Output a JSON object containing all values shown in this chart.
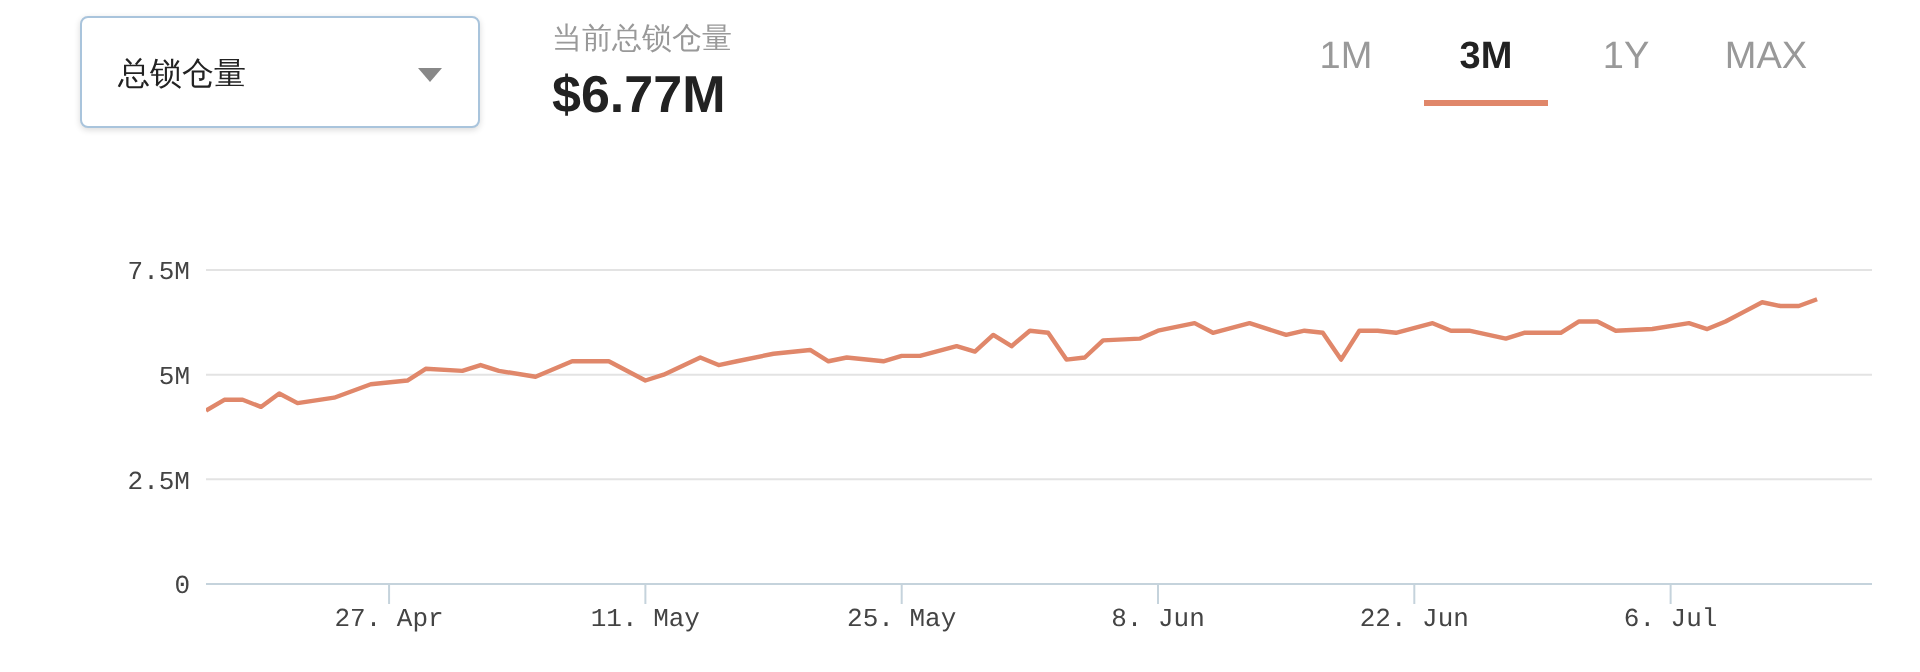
{
  "chart_data": {
    "type": "line",
    "annotations": [
      "总锁仓量",
      "当前总锁仓量",
      "$6.77M",
      "1M",
      "3M",
      "1Y",
      "MAX"
    ],
    "x": [
      "--04-17",
      "--04-18",
      "--04-19",
      "--04-20",
      "--04-21",
      "--04-22",
      "--04-24",
      "--04-26",
      "--04-28",
      "--04-29",
      "--05-01",
      "--05-02",
      "--05-03",
      "--05-05",
      "--05-07",
      "--05-09",
      "--05-11",
      "--05-12",
      "--05-14",
      "--05-15",
      "--05-16",
      "--05-18",
      "--05-20",
      "--05-21",
      "--05-22",
      "--05-24",
      "--05-25",
      "--05-26",
      "--05-28",
      "--05-29",
      "--05-30",
      "--05-31",
      "--06-01",
      "--06-02",
      "--06-03",
      "--06-04",
      "--06-05",
      "--06-07",
      "--06-08",
      "--06-10",
      "--06-11",
      "--06-13",
      "--06-15",
      "--06-16",
      "--06-17",
      "--06-18",
      "--06-19",
      "--06-20",
      "--06-21",
      "--06-23",
      "--06-24",
      "--06-25",
      "--06-27",
      "--06-28",
      "--06-30",
      "--07-01",
      "--07-02",
      "--07-03",
      "--07-05",
      "--07-07",
      "--07-08",
      "--07-09",
      "--07-10",
      "--07-11",
      "--07-12",
      "--07-13",
      "--07-14"
    ],
    "series": [
      {
        "color": "#e0876a",
        "values": [
          4.14,
          4.4,
          4.4,
          4.23,
          4.55,
          4.32,
          4.45,
          4.77,
          4.86,
          5.14,
          5.09,
          5.23,
          5.09,
          4.95,
          5.32,
          5.32,
          4.86,
          5.0,
          5.41,
          5.23,
          5.32,
          5.5,
          5.59,
          5.32,
          5.41,
          5.32,
          5.45,
          5.45,
          5.68,
          5.55,
          5.95,
          5.68,
          6.05,
          6.0,
          5.36,
          5.41,
          5.82,
          5.86,
          6.05,
          6.23,
          6.0,
          6.23,
          5.95,
          6.05,
          6.0,
          5.36,
          6.05,
          6.05,
          6.0,
          6.23,
          6.05,
          6.05,
          5.86,
          6.0,
          6.0,
          6.27,
          6.27,
          6.05,
          6.09,
          6.23,
          6.09,
          6.27,
          6.5,
          6.73,
          6.64,
          6.64,
          6.8
        ]
      }
    ],
    "xlim": [
      "--04-17",
      "--07-17"
    ],
    "xticks": [
      {
        "value": "--04-27",
        "label": "27. Apr"
      },
      {
        "value": "--05-11",
        "label": "11. May"
      },
      {
        "value": "--05-25",
        "label": "25. May"
      },
      {
        "value": "--06-08",
        "label": "8. Jun"
      },
      {
        "value": "--06-22",
        "label": "22. Jun"
      },
      {
        "value": "--07-06",
        "label": "6. Jul"
      }
    ],
    "ylim": [
      0,
      7.5
    ],
    "yticks": [
      {
        "value": 0,
        "label": "0"
      },
      {
        "value": 2.5,
        "label": "2.5M"
      },
      {
        "value": 5,
        "label": "5M"
      },
      {
        "value": 7.5,
        "label": "7.5M"
      }
    ],
    "grid": "y",
    "marker": "none",
    "line_style": "solid"
  }
}
